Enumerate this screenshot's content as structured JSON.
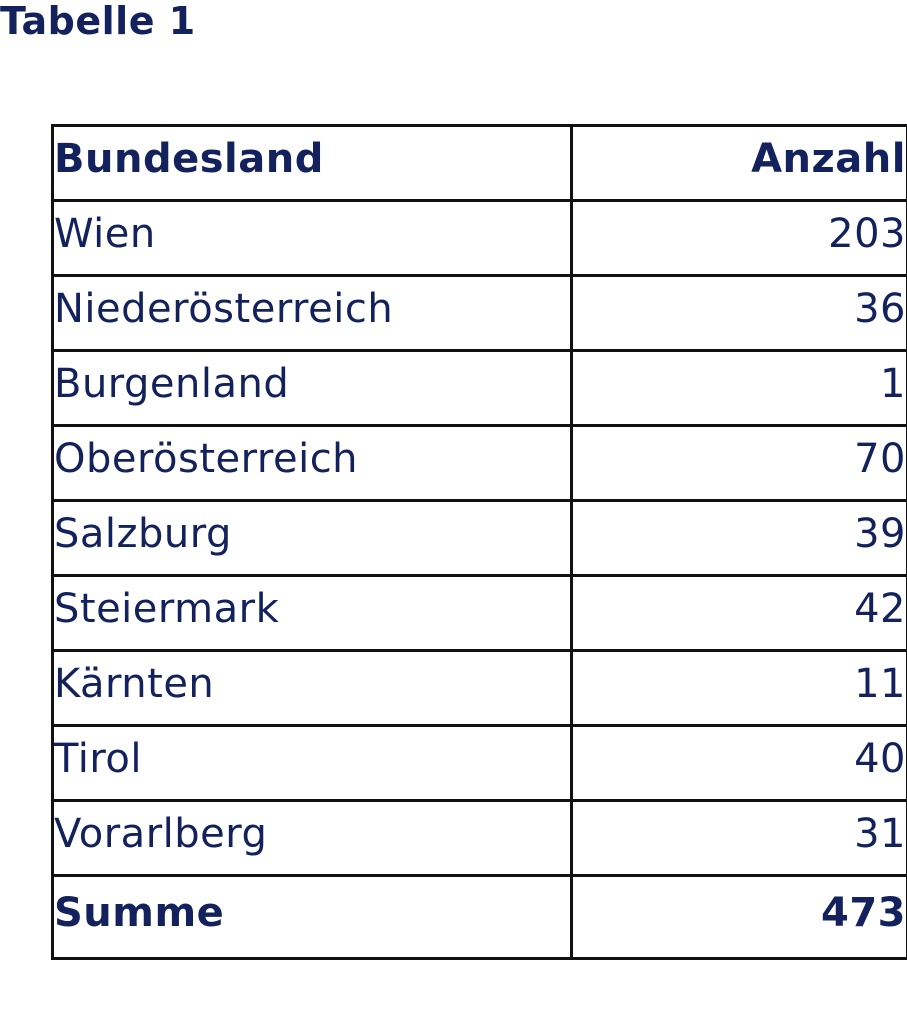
{
  "caption": "Tabelle 1",
  "table": {
    "headers": {
      "region": "Bundesland",
      "count": "Anzahl"
    },
    "rows": [
      {
        "region": "Wien",
        "count": "203"
      },
      {
        "region": "Niederösterreich",
        "count": "36"
      },
      {
        "region": "Burgenland",
        "count": "1"
      },
      {
        "region": "Oberösterreich",
        "count": "70"
      },
      {
        "region": "Salzburg",
        "count": "39"
      },
      {
        "region": "Steiermark",
        "count": "42"
      },
      {
        "region": "Kärnten",
        "count": "11"
      },
      {
        "region": "Tirol",
        "count": "40"
      },
      {
        "region": "Vorarlberg",
        "count": "31"
      }
    ],
    "total": {
      "label": "Summe",
      "count": "473"
    }
  },
  "colors": {
    "text": "#13225c",
    "border": "#111111",
    "background": "#ffffff"
  }
}
